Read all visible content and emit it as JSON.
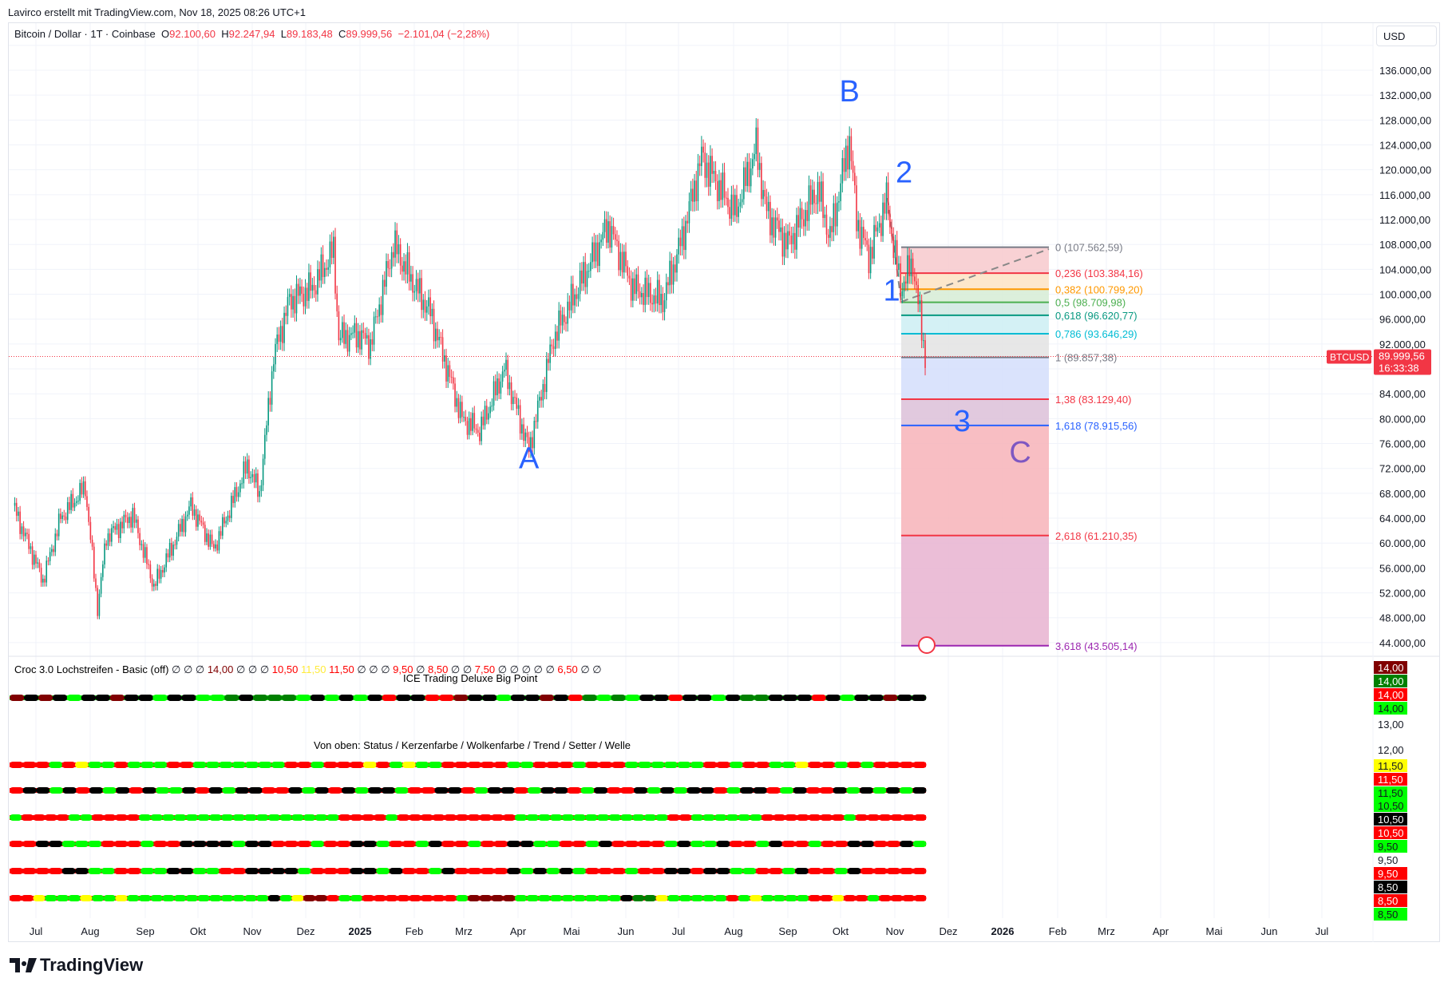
{
  "credit": "Lavirco erstellt mit TradingView.com, Nov 18, 2025 08:26 UTC+1",
  "legend": {
    "symbol": "Bitcoin / Dollar · 1T · Coinbase",
    "o_label": "O",
    "o": "92.100,60",
    "h_label": "H",
    "h": "92.247,94",
    "l_label": "L",
    "l": "89.183,48",
    "c_label": "C",
    "c": "89.999,56",
    "change": "−2.101,04 (−2,28%)"
  },
  "currency": "USD",
  "price_axis": [
    "136.000,00",
    "132.000,00",
    "128.000,00",
    "124.000,00",
    "120.000,00",
    "116.000,00",
    "112.000,00",
    "108.000,00",
    "104.000,00",
    "100.000,00",
    "96.000,00",
    "92.000,00",
    "84.000,00",
    "80.000,00",
    "76.000,00",
    "72.000,00",
    "68.000,00",
    "64.000,00",
    "60.000,00",
    "56.000,00",
    "52.000,00",
    "48.000,00",
    "44.000,00"
  ],
  "last_price": {
    "symbol": "BTCUSD",
    "price": "89.999,56",
    "countdown": "16:33:38",
    "color": "#f23645"
  },
  "time_axis": [
    "Jul",
    "Aug",
    "Sep",
    "Okt",
    "Nov",
    "Dez",
    "2025",
    "Feb",
    "Mrz",
    "Apr",
    "Mai",
    "Jun",
    "Jul",
    "Aug",
    "Sep",
    "Okt",
    "Nov",
    "Dez",
    "2026",
    "Feb",
    "Mrz",
    "Apr",
    "Mai",
    "Jun",
    "Jul"
  ],
  "fib": [
    {
      "label": "0 (107.562,59)",
      "price": 107562.59,
      "color": "#787b86",
      "fill": "#f7c9cd"
    },
    {
      "label": "0,236 (103.384,16)",
      "price": 103384.16,
      "color": "#f23645",
      "fill": "#fde3c3"
    },
    {
      "label": "0,382 (100.799,20)",
      "price": 100799.2,
      "color": "#ff9800",
      "fill": "#d6ecd5"
    },
    {
      "label": "0,5 (98.709,98)",
      "price": 98709.98,
      "color": "#4caf50",
      "fill": "#cfe8e2"
    },
    {
      "label": "0,618 (96.620,77)",
      "price": 96620.77,
      "color": "#089981",
      "fill": "#cdeff3"
    },
    {
      "label": "0,786 (93.646,29)",
      "price": 93646.29,
      "color": "#00bcd4",
      "fill": "#e3e3e3"
    },
    {
      "label": "1 (89.857,38)",
      "price": 89857.38,
      "color": "#787b86",
      "fill": "#d3defc"
    },
    {
      "label": "1,38 (83.129,40)",
      "price": 83129.4,
      "color": "#f23645",
      "fill": "#dcbfd8"
    },
    {
      "label": "1,618 (78.915,56)",
      "price": 78915.56,
      "color": "#2962ff",
      "fill": "#f7b3b8"
    },
    {
      "label": "2,618 (61.210,35)",
      "price": 61210.35,
      "color": "#f23645",
      "fill": "#e8b3d0"
    },
    {
      "label": "3,618 (43.505,14)",
      "price": 43505.14,
      "color": "#9c27b0",
      "fill": null
    }
  ],
  "waves": [
    {
      "text": "A",
      "date": "2025-04-07",
      "price": 72000,
      "color": "#2962ff"
    },
    {
      "text": "B",
      "date": "2025-10-06",
      "price": 131000,
      "color": "#2962ff"
    },
    {
      "text": "1",
      "date": "2025-10-30",
      "price": 99000,
      "color": "#2962ff"
    },
    {
      "text": "2",
      "date": "2025-11-06",
      "price": 118000,
      "color": "#2962ff"
    },
    {
      "text": "3",
      "date": "2025-12-09",
      "price": 78000,
      "color": "#2962ff"
    },
    {
      "text": "C",
      "date": "2026-01-11",
      "price": 73000,
      "color": "#7e57c2"
    }
  ],
  "chart_data": {
    "type": "candlestick",
    "title": "Bitcoin / Dollar · 1T · Coinbase",
    "ylim": [
      42000,
      140000
    ],
    "xlim": [
      "2024-06-18",
      "2026-07-31"
    ],
    "grid": true,
    "price_path": [
      [
        "2024-06-18",
        66000
      ],
      [
        "2024-07-05",
        54000
      ],
      [
        "2024-07-15",
        64000
      ],
      [
        "2024-07-29",
        69000
      ],
      [
        "2024-08-05",
        49500
      ],
      [
        "2024-08-10",
        61000
      ],
      [
        "2024-08-25",
        64500
      ],
      [
        "2024-09-06",
        53000
      ],
      [
        "2024-09-27",
        66000
      ],
      [
        "2024-10-10",
        59000
      ],
      [
        "2024-10-29",
        72500
      ],
      [
        "2024-11-05",
        68000
      ],
      [
        "2024-11-13",
        90000
      ],
      [
        "2024-11-22",
        99000
      ],
      [
        "2024-12-05",
        101000
      ],
      [
        "2024-12-17",
        107000
      ],
      [
        "2024-12-20",
        93000
      ],
      [
        "2024-12-31",
        93500
      ],
      [
        "2025-01-07",
        92000
      ],
      [
        "2025-01-20",
        108000
      ],
      [
        "2025-01-31",
        102000
      ],
      [
        "2025-02-10",
        97000
      ],
      [
        "2025-02-28",
        80000
      ],
      [
        "2025-03-10",
        78000
      ],
      [
        "2025-03-24",
        88000
      ],
      [
        "2025-04-07",
        75000
      ],
      [
        "2025-04-21",
        93000
      ],
      [
        "2025-05-10",
        104000
      ],
      [
        "2025-05-22",
        111000
      ],
      [
        "2025-06-05",
        101000
      ],
      [
        "2025-06-22",
        99000
      ],
      [
        "2025-07-03",
        109000
      ],
      [
        "2025-07-14",
        122000
      ],
      [
        "2025-08-02",
        113000
      ],
      [
        "2025-08-14",
        123500
      ],
      [
        "2025-08-20",
        113000
      ],
      [
        "2025-09-01",
        108000
      ],
      [
        "2025-09-18",
        117000
      ],
      [
        "2025-09-25",
        109000
      ],
      [
        "2025-10-06",
        125000
      ],
      [
        "2025-10-10",
        112000
      ],
      [
        "2025-10-17",
        106000
      ],
      [
        "2025-10-27",
        115000
      ],
      [
        "2025-11-04",
        101000
      ],
      [
        "2025-11-11",
        105000
      ],
      [
        "2025-11-18",
        90000
      ]
    ]
  },
  "indicator": {
    "title": "Croc 3.0 Lochstreifen - Basic (off)",
    "values": [
      {
        "t": "∅ ∅ ∅",
        "c": "#131722"
      },
      {
        "t": "14,00",
        "c": "#800000"
      },
      {
        "t": "∅ ∅ ∅",
        "c": "#131722"
      },
      {
        "t": "10,50",
        "c": "#ff0000"
      },
      {
        "t": "11,50",
        "c": "#ffeb3b"
      },
      {
        "t": "11,50",
        "c": "#ff0000"
      },
      {
        "t": "∅ ∅ ∅",
        "c": "#131722"
      },
      {
        "t": "9,50",
        "c": "#ff0000"
      },
      {
        "t": "∅",
        "c": "#131722"
      },
      {
        "t": "8,50",
        "c": "#ff0000"
      },
      {
        "t": "∅ ∅",
        "c": "#131722"
      },
      {
        "t": "7,50",
        "c": "#ff0000"
      },
      {
        "t": "∅ ∅ ∅ ∅ ∅",
        "c": "#131722"
      },
      {
        "t": "6,50",
        "c": "#ff0000"
      },
      {
        "t": "∅ ∅",
        "c": "#131722"
      }
    ],
    "big_point_title": "ICE Trading Deluxe Big Point",
    "rows_title": "Von oben: Status / Kerzenfarbe / Wolkenfarbe / Trend / Setter / Welle",
    "strips": [
      "dkdkgkkdkkgkkggGkGGGgkgkgkrkkrrdkkgkkdkrGgGgkkrkkgkGGkkkrkgkkdkk",
      "rrrgryggrgggrrgggggggrrgrrryrgyggrrrrrggrrrgrrrggggggrrgrrggyrrgrgrrrr",
      "rkkgkrkgkrkggkrkgkkrrkgkrkgkkgrrkkrgkkrgkkrgkrrkgkgkkrgkkrgkrrkgkgkgk",
      "grrrrggrrrrgggggggggggggggggrrrrgrrrrrrrrrrgggggggggggggrrggggggrrrrrrrgrrrrrr",
      "rrkkgggrrrgrrkkkkgkkrrrgrrkkgrrgkrrgrrkkggrrgkrrrrgkggkrrgkrrgrrkkrrkg",
      "rrrrkkggrrggkkggrrkkkkgrrrkkgkrrgkrrrrkgkgkgrrrgrrkkrkkggrrgkrrgkrrrrr",
      "rrygggyggyggggggggggggkgyddrggrrrrrrrrgddddgggggggggkGGygggggrgyggggrryrrgrrrr"
    ],
    "axis_labels": [
      {
        "t": "14,00",
        "bg": "#800000",
        "fg": "#fff"
      },
      {
        "t": "14,00",
        "bg": "#008000",
        "fg": "#fff"
      },
      {
        "t": "14,00",
        "bg": "#ff0000",
        "fg": "#fff"
      },
      {
        "t": "14,00",
        "bg": "#00ff00",
        "fg": "#131722"
      },
      {
        "t": "13,00",
        "bg": null,
        "fg": "#131722"
      },
      {
        "t": "12,00",
        "bg": null,
        "fg": "#131722"
      },
      {
        "t": "11,50",
        "bg": "#ffff00",
        "fg": "#131722"
      },
      {
        "t": "11,50",
        "bg": "#ff0000",
        "fg": "#fff"
      },
      {
        "t": "11,50",
        "bg": "#00ff00",
        "fg": "#131722"
      },
      {
        "t": "10,50",
        "bg": "#00ff00",
        "fg": "#131722"
      },
      {
        "t": "10,50",
        "bg": "#000000",
        "fg": "#fff"
      },
      {
        "t": "10,50",
        "bg": "#ff0000",
        "fg": "#fff"
      },
      {
        "t": "9,50",
        "bg": "#00ff00",
        "fg": "#131722"
      },
      {
        "t": "9,50",
        "bg": null,
        "fg": "#131722"
      },
      {
        "t": "9,50",
        "bg": "#ff0000",
        "fg": "#fff"
      },
      {
        "t": "8,50",
        "bg": "#000000",
        "fg": "#fff"
      },
      {
        "t": "8,50",
        "bg": "#ff0000",
        "fg": "#fff"
      },
      {
        "t": "8,50",
        "bg": "#00ff00",
        "fg": "#131722"
      }
    ]
  },
  "colors": {
    "up": "#089981",
    "down": "#f23645",
    "g": "#00ff00",
    "r": "#ff0000",
    "k": "#000000",
    "d": "#800000",
    "G": "#008000",
    "y": "#ffff00"
  },
  "logo": "TradingView"
}
